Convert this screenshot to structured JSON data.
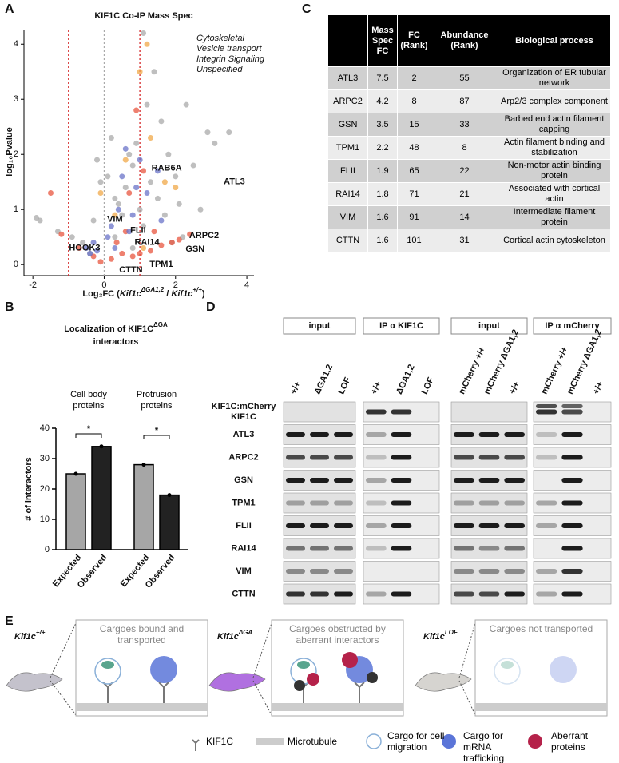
{
  "panels": [
    "A",
    "B",
    "C",
    "D",
    "E"
  ],
  "chart_data": [
    {
      "type": "scatter",
      "title": "KIF1C Co-IP Mass Spec",
      "x_label": [
        "Log₂FC (",
        "Kif1c",
        "ΔGA1,2",
        " / ",
        "Kif1c",
        "+/+",
        ")"
      ],
      "y_label": "log₁₀Pvalue",
      "xlim": [
        -2.25,
        4.2
      ],
      "xticks": [
        -2,
        0,
        2,
        4
      ],
      "ylim": [
        -0.2,
        4.25
      ],
      "yticks": [
        0,
        1,
        2,
        3,
        4
      ],
      "vlines": [
        {
          "value": -1,
          "color": "#d62728"
        },
        {
          "value": 0,
          "color": "#aaaaaa"
        },
        {
          "value": 1,
          "color": "#d62728"
        }
      ],
      "series": [
        {
          "name": "Unspecified",
          "color": "#a9a9a9",
          "x": [
            -1.9,
            -1.8,
            -1.3,
            -0.9,
            -0.6,
            -0.3,
            -0.2,
            -0.1,
            0.1,
            0.2,
            0.3,
            0.4,
            0.5,
            0.6,
            0.7,
            0.8,
            0.9,
            1.0,
            1.1,
            1.2,
            1.3,
            1.4,
            1.5,
            1.6,
            1.7,
            1.8,
            2.0,
            2.1,
            2.3,
            2.5,
            2.7,
            2.9,
            3.1,
            3.5,
            1.1,
            0.8,
            0.3,
            1.9,
            2.2,
            -0.4
          ],
          "y": [
            0.85,
            0.8,
            0.6,
            0.5,
            0.4,
            0.8,
            1.9,
            1.5,
            1.6,
            2.3,
            1.2,
            1.1,
            0.9,
            1.4,
            2.0,
            1.8,
            2.2,
            1.0,
            0.7,
            2.9,
            1.5,
            3.5,
            1.2,
            2.6,
            0.9,
            2.0,
            1.6,
            1.1,
            2.9,
            1.8,
            1.0,
            2.4,
            2.2,
            2.4,
            4.2,
            0.3,
            0.5,
            0.4,
            0.5,
            0.2
          ]
        },
        {
          "name": "Cytoskeletal",
          "color": "#e8553f",
          "x": [
            -1.5,
            -1.2,
            -0.3,
            -0.1,
            0.2,
            0.5,
            0.8,
            1.0,
            1.3,
            1.6,
            1.9,
            2.1,
            2.4,
            0.9,
            1.1,
            0.7,
            0.35,
            1.4,
            0.6,
            -0.7
          ],
          "y": [
            1.3,
            0.55,
            0.15,
            0.05,
            0.1,
            0.2,
            0.15,
            0.2,
            0.25,
            0.35,
            0.4,
            0.45,
            0.55,
            2.8,
            1.7,
            1.3,
            0.4,
            0.6,
            0.6,
            0.3
          ]
        },
        {
          "name": "Vesicle transport",
          "color": "#6a73c8",
          "x": [
            -0.5,
            -0.4,
            -0.3,
            -0.2,
            0.1,
            0.3,
            0.4,
            0.5,
            0.6,
            0.7,
            0.9,
            1.0,
            1.2,
            1.5,
            1.6,
            0.8,
            0.2
          ],
          "y": [
            0.3,
            0.2,
            0.4,
            0.25,
            0.5,
            0.3,
            1.0,
            1.6,
            2.1,
            0.6,
            1.4,
            1.9,
            1.3,
            1.7,
            0.8,
            0.9,
            0.7
          ]
        },
        {
          "name": "Integrin Signaling",
          "color": "#f0a848",
          "x": [
            1.0,
            1.2,
            0.6,
            1.3,
            1.7,
            2.0,
            0.3,
            -0.1,
            1.1
          ],
          "y": [
            3.5,
            4.0,
            1.9,
            2.3,
            1.5,
            1.4,
            0.9,
            1.3,
            0.3
          ]
        }
      ],
      "legend_colors": [
        "#e8201a",
        "#1a2be0",
        "#f07f1a",
        "#9a9a9a"
      ],
      "annotations": [
        {
          "text": "RAB6A",
          "x": 1.75,
          "y": 1.75
        },
        {
          "text": "ATL3",
          "x": 3.65,
          "y": 1.5
        },
        {
          "text": "VIM",
          "x": 0.3,
          "y": 0.82
        },
        {
          "text": "FLII",
          "x": 0.95,
          "y": 0.62
        },
        {
          "text": "RAI14",
          "x": 1.2,
          "y": 0.4
        },
        {
          "text": "ARPC2",
          "x": 2.8,
          "y": 0.52
        },
        {
          "text": "GSN",
          "x": 2.55,
          "y": 0.28
        },
        {
          "text": "TPM1",
          "x": 1.6,
          "y": 0.0
        },
        {
          "text": "CTTN",
          "x": 0.75,
          "y": -0.1
        },
        {
          "text": "HOOK3",
          "x": -0.55,
          "y": 0.3
        }
      ]
    },
    {
      "type": "bar",
      "title": [
        "Localization of KIF1C",
        "ΔGA",
        "interactors"
      ],
      "groups": [
        "Cell body proteins",
        "Protrusion proteins"
      ],
      "categories": [
        "Expected",
        "Observed",
        "Expected",
        "Observed"
      ],
      "values": [
        25,
        34,
        28,
        18
      ],
      "colors": [
        "#a6a6a6",
        "#222222",
        "#a6a6a6",
        "#222222"
      ],
      "y_label": "# of interactors",
      "ylim": [
        0,
        40
      ],
      "yticks": [
        0,
        10,
        20,
        30,
        40
      ],
      "significance_labels": [
        "*",
        "*"
      ]
    }
  ],
  "table": {
    "header": [
      "",
      "Mass Spec FC",
      "FC (Rank)",
      "Abundance (Rank)",
      "Biological process"
    ],
    "rows": [
      [
        "ATL3",
        "7.5",
        "2",
        "55",
        "Organization of ER tubular network"
      ],
      [
        "ARPC2",
        "4.2",
        "8",
        "87",
        "Arp2/3 complex component"
      ],
      [
        "GSN",
        "3.5",
        "15",
        "33",
        "Barbed end actin filament capping"
      ],
      [
        "TPM1",
        "2.2",
        "48",
        "8",
        "Actin filament binding and stabilization"
      ],
      [
        "FLII",
        "1.9",
        "65",
        "22",
        "Non-motor actin binding protein"
      ],
      [
        "RAI14",
        "1.8",
        "71",
        "21",
        "Associated with cortical actin"
      ],
      [
        "VIM",
        "1.6",
        "91",
        "14",
        "Intermediate filament protein"
      ],
      [
        "CTTN",
        "1.6",
        "101",
        "31",
        "Cortical actin cytoskeleton"
      ]
    ]
  },
  "blot": {
    "column_headers": [
      "input",
      "IP α KIF1C",
      "input",
      "IP α mCherry"
    ],
    "lane_labels": [
      [
        "+/+",
        "ΔGA1,2",
        "LOF"
      ],
      [
        "+/+",
        "ΔGA1,2",
        "LOF"
      ],
      [
        "mCherry +/+",
        "mCherry ΔGA1,2",
        "+/+"
      ],
      [
        "mCherry +/+",
        "mCherry ΔGA1,2",
        "+/+"
      ]
    ],
    "top_row_labels": [
      "KIF1C:mCherry",
      "KIF1C"
    ],
    "row_labels": [
      "ATL3",
      "ARPC2",
      "GSN",
      "TPM1",
      "FLII",
      "RAI14",
      "VIM",
      "CTTN"
    ]
  },
  "schematic": {
    "conditions": [
      {
        "genotype": "Kif1c",
        "superscript": "+/+",
        "caption": "Cargoes bound and transported"
      },
      {
        "genotype": "Kif1c",
        "superscript": "ΔGA",
        "caption": "Cargoes obstructed by aberrant interactors"
      },
      {
        "genotype": "Kif1c",
        "superscript": "LOF",
        "caption": "Cargoes not transported"
      }
    ],
    "legend": [
      "KIF1C",
      "Microtubule",
      "Cargo for cell migration",
      "Cargo for mRNA trafficking",
      "Aberrant proteins"
    ]
  }
}
